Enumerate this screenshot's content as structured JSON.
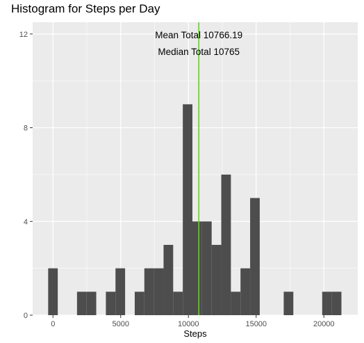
{
  "chart_data": {
    "type": "bar",
    "subtype": "histogram",
    "title": "Histogram for Steps per Day",
    "xlabel": "Steps",
    "ylabel": "",
    "xlim": [
      -1500,
      22500
    ],
    "ylim": [
      0,
      12.5
    ],
    "x_ticks": [
      0,
      5000,
      10000,
      15000,
      20000
    ],
    "y_ticks": [
      0,
      4,
      8,
      12
    ],
    "bin_width": 710,
    "bins": [
      {
        "x": 0,
        "count": 2
      },
      {
        "x": 1420,
        "count": 0
      },
      {
        "x": 2130,
        "count": 1
      },
      {
        "x": 2840,
        "count": 1
      },
      {
        "x": 3550,
        "count": 0
      },
      {
        "x": 4260,
        "count": 1
      },
      {
        "x": 4970,
        "count": 2
      },
      {
        "x": 5680,
        "count": 0
      },
      {
        "x": 6390,
        "count": 1
      },
      {
        "x": 7100,
        "count": 2
      },
      {
        "x": 7810,
        "count": 2
      },
      {
        "x": 8520,
        "count": 3
      },
      {
        "x": 9230,
        "count": 1
      },
      {
        "x": 9940,
        "count": 9
      },
      {
        "x": 10650,
        "count": 4
      },
      {
        "x": 11360,
        "count": 4
      },
      {
        "x": 12070,
        "count": 3
      },
      {
        "x": 12780,
        "count": 6
      },
      {
        "x": 13490,
        "count": 1
      },
      {
        "x": 14200,
        "count": 2
      },
      {
        "x": 14910,
        "count": 5
      },
      {
        "x": 17390,
        "count": 1
      },
      {
        "x": 20230,
        "count": 1
      },
      {
        "x": 20940,
        "count": 1
      }
    ],
    "reference_line": {
      "x": 10766.19,
      "color": "#66cc33"
    },
    "annotations": [
      "Mean Total 10766.19",
      "Median Total 10765"
    ],
    "grid": true,
    "colors": {
      "panel": "#ebebeb",
      "grid": "#ffffff",
      "bar": "#4d4d4d",
      "line": "#66cc33"
    }
  }
}
